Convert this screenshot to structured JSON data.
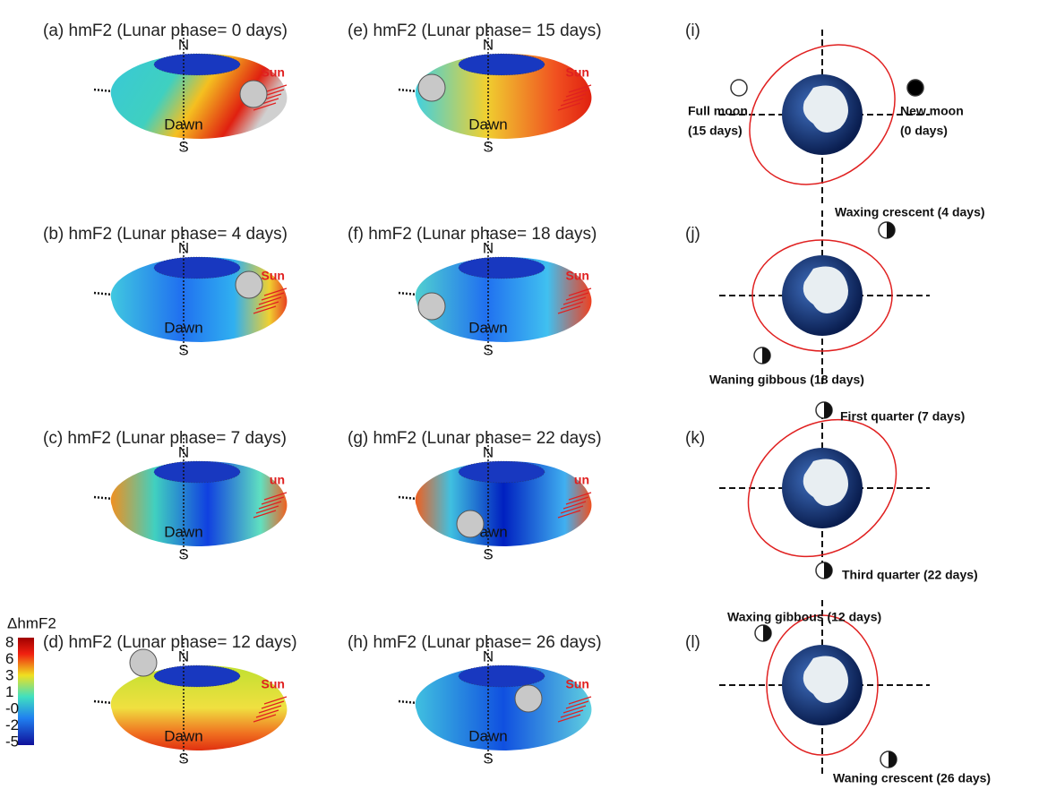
{
  "panels": [
    {
      "title": "(a) hmF2 (Lunar phase= 0 days)",
      "north": "N",
      "south": "S",
      "dawn": "Dawn",
      "sun": "Sun"
    },
    {
      "title": "(b) hmF2 (Lunar phase= 4 days)",
      "north": "N",
      "south": "S",
      "dawn": "Dawn",
      "sun": "Sun"
    },
    {
      "title": "(c) hmF2 (Lunar phase= 7 days)",
      "north": "N",
      "south": "S",
      "dawn": "Dawn",
      "sun": "un"
    },
    {
      "title": "(d) hmF2 (Lunar phase= 12 days)",
      "north": "N",
      "south": "S",
      "dawn": "Dawn",
      "sun": "Sun"
    },
    {
      "title": "(e) hmF2 (Lunar phase= 15 days)",
      "north": "N",
      "south": "S",
      "dawn": "Dawn",
      "sun": "Sun"
    },
    {
      "title": "(f) hmF2 (Lunar phase= 18 days)",
      "north": "N",
      "south": "S",
      "dawn": "Dawn",
      "sun": "Sun"
    },
    {
      "title": "(g) hmF2 (Lunar phase= 22 days)",
      "north": "N",
      "south": "S",
      "dawn": "Dawn",
      "sun": "un"
    },
    {
      "title": "(h) hmF2 (Lunar phase= 26 days)",
      "north": "N",
      "south": "S",
      "dawn": "Dawn",
      "sun": "Sun"
    }
  ],
  "orbits": [
    {
      "label": "(i)",
      "moons": [
        [
          "Full moon",
          "(15 days)"
        ],
        [
          "New moon",
          "(0 days)"
        ]
      ]
    },
    {
      "label": "(j)",
      "moons": [
        [
          "Waxing crescent (4 days)"
        ],
        [
          "Waning gibbous (18 days)"
        ]
      ]
    },
    {
      "label": "(k)",
      "moons": [
        [
          "First quarter (7 days)"
        ],
        [
          "Third quarter (22 days)"
        ]
      ]
    },
    {
      "label": "(l)",
      "moons": [
        [
          "Waxing gibbous (12 days)"
        ],
        [
          "Waning crescent (26 days)"
        ]
      ]
    }
  ],
  "colorbar": {
    "title": "ΔhmF2",
    "ticks": [
      "8",
      "6",
      "3",
      "1",
      "-0",
      "-2",
      "-5"
    ]
  }
}
